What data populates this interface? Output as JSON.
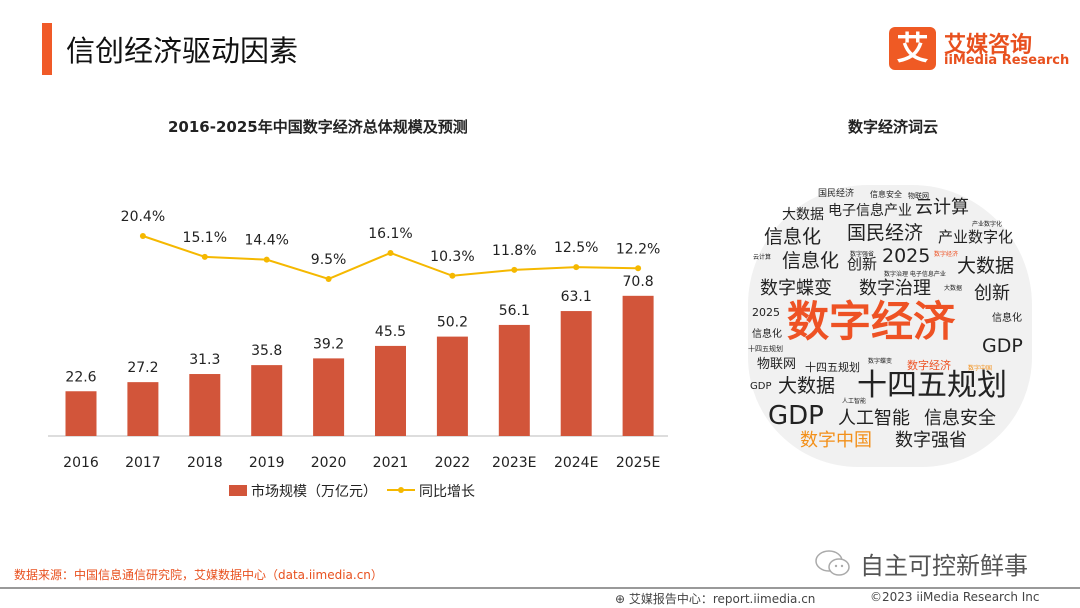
{
  "header": {
    "title": "信创经济驱动因素",
    "logo_cn": "艾媒咨询",
    "logo_en": "iiMedia Research",
    "logo_mark": "艾"
  },
  "chart_data": {
    "type": "bar+line",
    "title": "2016-2025年中国数字经济总体规模及预测",
    "categories": [
      "2016",
      "2017",
      "2018",
      "2019",
      "2020",
      "2021",
      "2022",
      "2023E",
      "2024E",
      "2025E"
    ],
    "series": [
      {
        "name": "市场规模（万亿元）",
        "type": "bar",
        "color": "#d2553a",
        "values": [
          22.6,
          27.2,
          31.3,
          35.8,
          39.2,
          45.5,
          50.2,
          56.1,
          63.1,
          70.8
        ]
      },
      {
        "name": "同比增长",
        "type": "line",
        "color": "#f5b800",
        "values": [
          null,
          20.4,
          15.1,
          14.4,
          9.5,
          16.1,
          10.3,
          11.8,
          12.5,
          12.2
        ],
        "unit": "%"
      }
    ],
    "legend": "bottom",
    "grid": false
  },
  "cloud": {
    "title": "数字经济词云",
    "words": [
      "国民经济",
      "信息安全",
      "物联网",
      "大数据",
      "电子信息产业",
      "云计算",
      "产业数字化",
      "信息化",
      "国民经济",
      "产业数字化",
      "云计算",
      "数字强省",
      "数字经济",
      "信息化",
      "创新",
      "2025",
      "大数据",
      "数字治理 电子信息产业",
      "数字蝶变",
      "数字治理",
      "大数据",
      "创新",
      "2025",
      "数字经济",
      "信息化",
      "信息化",
      "十四五规划",
      "GDP",
      "物联网",
      "十四五规划",
      "数字蝶变",
      "数字经济",
      "数字中国",
      "GDP",
      "大数据",
      "十四五规划",
      "人工智能",
      "GDP",
      "人工智能",
      "信息安全",
      "数字中国",
      "数字强省"
    ]
  },
  "footer": {
    "source": "数据来源：中国信息通信研究院，艾媒数据中心（data.iimedia.cn）",
    "wechat": "自主可控新鲜事",
    "report": "艾媒报告中心：report.iimedia.cn",
    "copyright": "©2023  iiMedia Research  Inc"
  }
}
